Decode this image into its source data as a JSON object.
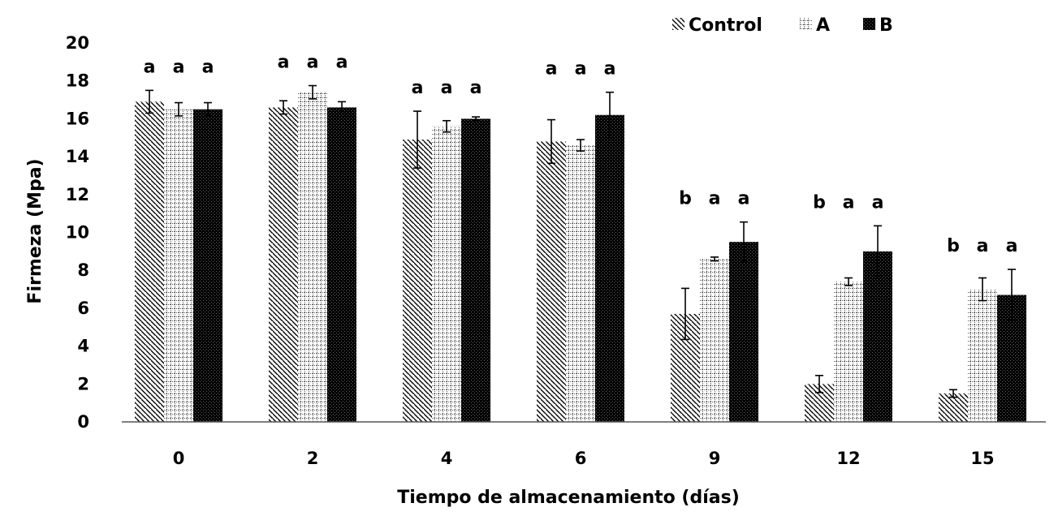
{
  "chart_data": {
    "type": "bar",
    "title": "",
    "xlabel": "Tiempo de almacenamiento (días)",
    "ylabel": "Firmeza (Mpa)",
    "ylim": [
      0,
      20
    ],
    "ytick_step": 2,
    "yticks": [
      "0",
      "2",
      "4",
      "6",
      "8",
      "10",
      "12",
      "14",
      "16",
      "18",
      "20"
    ],
    "categories": [
      "0",
      "2",
      "4",
      "6",
      "9",
      "12",
      "15"
    ],
    "legend_position": "top-right",
    "series": [
      {
        "name": "Control",
        "pattern": "diagonal-hatch",
        "values": [
          16.9,
          16.6,
          14.9,
          14.8,
          5.7,
          2.0,
          1.5
        ],
        "errors": [
          0.6,
          0.35,
          1.5,
          1.15,
          1.35,
          0.45,
          0.2
        ],
        "letters": [
          "a",
          "a",
          "a",
          "a",
          "b",
          "b",
          "b"
        ]
      },
      {
        "name": "A",
        "pattern": "grid",
        "values": [
          16.5,
          17.4,
          15.6,
          14.6,
          8.6,
          7.4,
          7.0
        ],
        "errors": [
          0.35,
          0.35,
          0.3,
          0.3,
          0.1,
          0.2,
          0.6
        ],
        "letters": [
          "a",
          "a",
          "a",
          "a",
          "a",
          "a",
          "a"
        ]
      },
      {
        "name": "B",
        "pattern": "dense-dots",
        "values": [
          16.5,
          16.6,
          16.0,
          16.2,
          9.5,
          9.0,
          6.7
        ],
        "errors": [
          0.35,
          0.3,
          0.1,
          1.2,
          1.05,
          1.35,
          1.35
        ],
        "letters": [
          "a",
          "a",
          "a",
          "a",
          "a",
          "a",
          "a"
        ]
      }
    ]
  }
}
